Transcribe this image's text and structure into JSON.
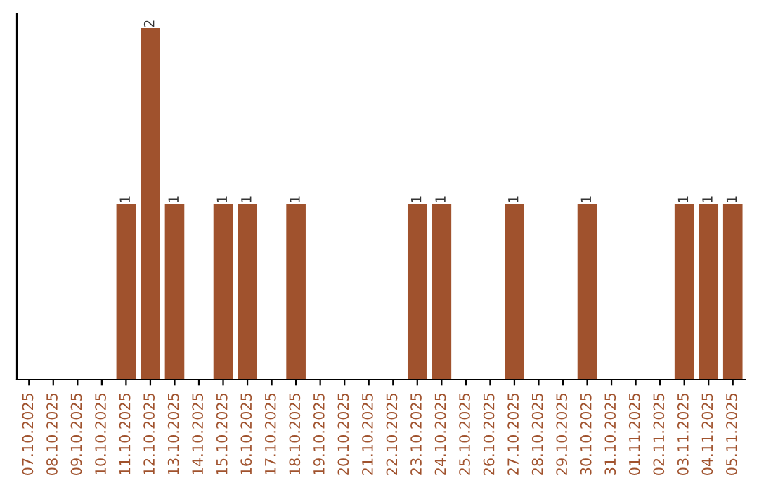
{
  "chart_data": {
    "type": "bar",
    "categories": [
      "07.10.2025",
      "08.10.2025",
      "09.10.2025",
      "10.10.2025",
      "11.10.2025",
      "12.10.2025",
      "13.10.2025",
      "14.10.2025",
      "15.10.2025",
      "16.10.2025",
      "17.10.2025",
      "18.10.2025",
      "19.10.2025",
      "20.10.2025",
      "21.10.2025",
      "22.10.2025",
      "23.10.2025",
      "24.10.2025",
      "25.10.2025",
      "26.10.2025",
      "27.10.2025",
      "28.10.2025",
      "29.10.2025",
      "30.10.2025",
      "31.10.2025",
      "01.11.2025",
      "02.11.2025",
      "03.11.2025",
      "04.11.2025",
      "05.11.2025"
    ],
    "values": [
      null,
      null,
      null,
      null,
      1,
      2,
      1,
      null,
      1,
      1,
      null,
      1,
      null,
      null,
      null,
      null,
      1,
      1,
      null,
      null,
      1,
      null,
      null,
      1,
      null,
      null,
      null,
      1,
      1,
      1
    ],
    "color": "#a0522d",
    "ylim": [
      0,
      2.08
    ],
    "data_labels": true,
    "tick_labels": "x",
    "grid": false,
    "legend": false
  }
}
